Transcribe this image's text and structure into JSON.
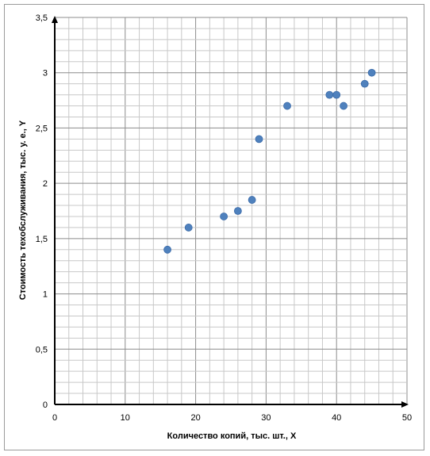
{
  "chart_data": {
    "type": "scatter",
    "xlabel": "Количество копий, тыс. шт., X",
    "ylabel": "Стоимость техобслуживания, тыс. у. е., Y",
    "xlim": [
      0,
      50
    ],
    "ylim": [
      0,
      3.5
    ],
    "x_ticks": [
      "0",
      "10",
      "20",
      "30",
      "40",
      "50"
    ],
    "y_ticks": [
      "0",
      "0,5",
      "1",
      "1,5",
      "2",
      "2,5",
      "3",
      "3,5"
    ],
    "grid": true,
    "legend": "none",
    "marker_color": "#4f81bd",
    "points": [
      {
        "x": 16,
        "y": 1.4
      },
      {
        "x": 19,
        "y": 1.6
      },
      {
        "x": 24,
        "y": 1.7
      },
      {
        "x": 26,
        "y": 1.75
      },
      {
        "x": 28,
        "y": 1.85
      },
      {
        "x": 29,
        "y": 2.4
      },
      {
        "x": 33,
        "y": 2.7
      },
      {
        "x": 39,
        "y": 2.8
      },
      {
        "x": 40,
        "y": 2.8
      },
      {
        "x": 41,
        "y": 2.7
      },
      {
        "x": 44,
        "y": 2.9
      },
      {
        "x": 45,
        "y": 3.0
      }
    ]
  }
}
